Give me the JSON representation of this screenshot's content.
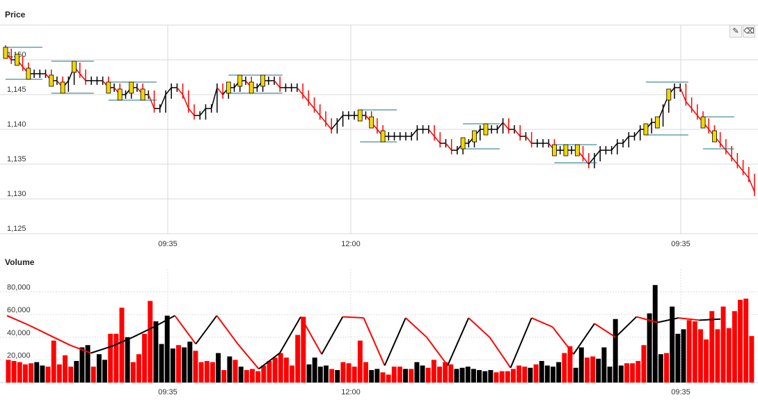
{
  "chart_data": [
    {
      "type": "candlestick",
      "title": "Price",
      "ylim": [
        1125,
        1155
      ],
      "y_ticks": [
        "1,125",
        "1,130",
        "1,135",
        "1,140",
        "1,145",
        "1,150"
      ],
      "x_ticks": [
        "09:35",
        "12:00",
        "09:35"
      ],
      "grid": true,
      "rising_color": "#000000",
      "falling_color": "#ff0000",
      "box_fill": "#f2d600",
      "box_stroke": "#000000",
      "level_color": "#1a6f80",
      "close_approx": [
        1151,
        1150,
        1150,
        1149,
        1148,
        1148,
        1148,
        1148,
        1147,
        1147,
        1146,
        1147,
        1149,
        1148,
        1147,
        1147,
        1147,
        1147,
        1146,
        1146,
        1145,
        1145,
        1146,
        1146,
        1145,
        1145,
        1143,
        1143,
        1145,
        1146,
        1146,
        1145,
        1143,
        1142,
        1142,
        1143,
        1143,
        1146,
        1145,
        1146,
        1146,
        1147,
        1147,
        1146,
        1146,
        1147,
        1147,
        1147,
        1146,
        1146,
        1146,
        1146,
        1145,
        1144,
        1143,
        1142,
        1141,
        1140,
        1141,
        1142,
        1142,
        1142,
        1142,
        1142,
        1141,
        1140,
        1139,
        1139,
        1139,
        1139,
        1139,
        1139,
        1140,
        1140,
        1140,
        1139,
        1138,
        1138,
        1137,
        1137,
        1138,
        1138,
        1139,
        1140,
        1140,
        1140,
        1140,
        1141,
        1140,
        1140,
        1139,
        1139,
        1138,
        1138,
        1138,
        1138,
        1137,
        1137,
        1137,
        1137,
        1137,
        1136,
        1135,
        1136,
        1137,
        1137,
        1137,
        1138,
        1138,
        1139,
        1139,
        1140,
        1140,
        1141,
        1141,
        1143,
        1145,
        1146,
        1146,
        1144,
        1143,
        1142,
        1141,
        1140,
        1139,
        1138,
        1137,
        1136,
        1135,
        1134,
        1133,
        1131
      ]
    },
    {
      "type": "bar",
      "title": "Volume",
      "ylim": [
        0,
        100000
      ],
      "y_ticks": [
        "20,000",
        "40,000",
        "60,000",
        "80,000"
      ],
      "x_ticks": [
        "09:35",
        "12:00",
        "09:35"
      ],
      "grid": true,
      "rising_color": "#000000",
      "falling_color": "#ff0000",
      "values": [
        20000,
        19000,
        18000,
        16000,
        17000,
        18000,
        15000,
        14000,
        37000,
        16000,
        24000,
        14000,
        19000,
        31000,
        33000,
        14000,
        25000,
        20000,
        43000,
        43000,
        66000,
        40000,
        18000,
        25000,
        43000,
        72000,
        54000,
        34000,
        59000,
        30000,
        33000,
        31000,
        36000,
        28000,
        18000,
        19000,
        18000,
        26000,
        11000,
        23000,
        20000,
        14000,
        11000,
        12000,
        10000,
        15000,
        19000,
        22000,
        26000,
        22000,
        15000,
        42000,
        58000,
        16000,
        22000,
        14000,
        15000,
        12000,
        11000,
        18000,
        17000,
        14000,
        37000,
        18000,
        11000,
        12000,
        9000,
        7000,
        14000,
        14000,
        12000,
        12000,
        18000,
        15000,
        13000,
        20000,
        14000,
        18000,
        16000,
        12000,
        13000,
        14000,
        12000,
        11000,
        10000,
        11000,
        9000,
        10000,
        10000,
        12000,
        15000,
        14000,
        13000,
        16000,
        19000,
        15000,
        14000,
        18000,
        26000,
        32000,
        13000,
        31000,
        22000,
        23000,
        21000,
        31000,
        14000,
        56000,
        15000,
        17000,
        17000,
        19000,
        33000,
        61000,
        86000,
        25000,
        26000,
        67000,
        43000,
        47000,
        55000,
        54000,
        47000,
        38000,
        63000,
        47000,
        67000,
        48000,
        63000,
        73000,
        74000,
        41000
      ],
      "falling_flags": [
        1,
        1,
        1,
        1,
        1,
        0,
        0,
        1,
        1,
        1,
        1,
        1,
        0,
        0,
        0,
        1,
        0,
        0,
        1,
        1,
        1,
        0,
        1,
        1,
        1,
        1,
        0,
        0,
        0,
        0,
        1,
        0,
        0,
        1,
        1,
        1,
        1,
        0,
        1,
        0,
        1,
        0,
        1,
        1,
        1,
        1,
        1,
        1,
        1,
        1,
        1,
        1,
        1,
        0,
        0,
        0,
        0,
        1,
        0,
        1,
        1,
        1,
        1,
        1,
        0,
        0,
        1,
        1,
        1,
        1,
        0,
        1,
        0,
        0,
        1,
        1,
        1,
        1,
        1,
        0,
        0,
        0,
        0,
        0,
        0,
        0,
        1,
        1,
        1,
        1,
        1,
        1,
        0,
        1,
        0,
        0,
        0,
        0,
        1,
        1,
        0,
        0,
        1,
        1,
        0,
        0,
        0,
        0,
        0,
        1,
        1,
        1,
        1,
        0,
        0,
        0,
        1,
        0,
        0,
        0,
        1,
        1,
        1,
        1,
        1,
        1,
        1,
        1,
        1,
        1,
        1,
        1
      ],
      "moving_average_approx": [
        59000,
        51000,
        42000,
        33000,
        26000,
        32000,
        40000,
        49000,
        59000,
        34000,
        59000,
        34000,
        12000,
        26000,
        58000,
        25000,
        58000,
        57000,
        15000,
        57000,
        40000,
        15000,
        57000,
        40000,
        13000,
        57000,
        49000,
        25000,
        52000,
        40000,
        58000,
        53000,
        57000,
        55000,
        56000
      ]
    }
  ],
  "toolbar": {
    "pencil_icon_label": "✎",
    "eraser_icon_label": "⌫"
  }
}
